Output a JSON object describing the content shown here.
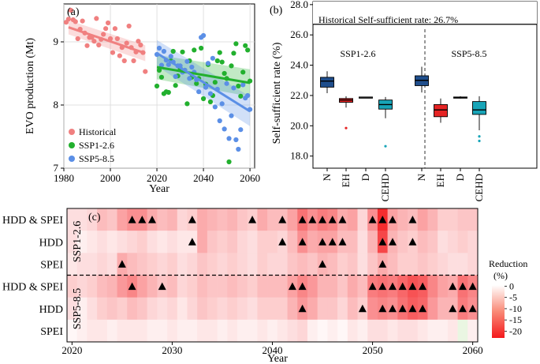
{
  "chart_data": [
    {
      "id": "a",
      "type": "scatter",
      "panel_label": "(a)",
      "xlabel": "Year",
      "ylabel": "EVO production (Mt)",
      "xlim": [
        1980,
        2062
      ],
      "ylim": [
        7,
        9.6
      ],
      "xticks": [
        1980,
        2000,
        2020,
        2040,
        2060
      ],
      "yticks": [
        7,
        8,
        9
      ],
      "legend_position": "bottom-left",
      "series": [
        {
          "name": "Historical",
          "color": "#f08080",
          "points": [
            [
              1981,
              9.31
            ],
            [
              1982,
              9.36
            ],
            [
              1983,
              9.5
            ],
            [
              1984,
              9.35
            ],
            [
              1985,
              9.32
            ],
            [
              1986,
              9.05
            ],
            [
              1987,
              9.2
            ],
            [
              1988,
              9.33
            ],
            [
              1989,
              9.14
            ],
            [
              1990,
              8.94
            ],
            [
              1991,
              9.07
            ],
            [
              1992,
              9.07
            ],
            [
              1993,
              9.01
            ],
            [
              1994,
              9.37
            ],
            [
              1995,
              8.95
            ],
            [
              1996,
              9.04
            ],
            [
              1997,
              9.12
            ],
            [
              1998,
              9.21
            ],
            [
              1999,
              9.3
            ],
            [
              2000,
              9.05
            ],
            [
              2001,
              8.83
            ],
            [
              2002,
              9.21
            ],
            [
              2003,
              9.05
            ],
            [
              2004,
              8.78
            ],
            [
              2005,
              8.91
            ],
            [
              2006,
              8.7
            ],
            [
              2007,
              8.98
            ],
            [
              2008,
              9.25
            ],
            [
              2009,
              8.91
            ],
            [
              2010,
              8.7
            ],
            [
              2011,
              8.84
            ],
            [
              2012,
              9.01
            ],
            [
              2013,
              8.95
            ],
            [
              2014,
              8.83
            ],
            [
              2015,
              8.53
            ]
          ],
          "trend": [
            [
              1982,
              9.23
            ],
            [
              2015,
              8.82
            ]
          ]
        },
        {
          "name": "SSP1-2.6",
          "color": "#22b02e",
          "points": [
            [
              2020,
              8.3
            ],
            [
              2021,
              8.55
            ],
            [
              2022,
              8.44
            ],
            [
              2023,
              8.18
            ],
            [
              2024,
              8.21
            ],
            [
              2025,
              8.2
            ],
            [
              2026,
              8.7
            ],
            [
              2027,
              8.85
            ],
            [
              2028,
              8.31
            ],
            [
              2029,
              8.46
            ],
            [
              2030,
              8.58
            ],
            [
              2031,
              8.84
            ],
            [
              2032,
              8.55
            ],
            [
              2033,
              8.02
            ],
            [
              2034,
              8.7
            ],
            [
              2035,
              8.44
            ],
            [
              2036,
              8.87
            ],
            [
              2037,
              8.34
            ],
            [
              2038,
              8.42
            ],
            [
              2039,
              8.9
            ],
            [
              2040,
              8.1
            ],
            [
              2041,
              8.33
            ],
            [
              2042,
              8.64
            ],
            [
              2043,
              8.05
            ],
            [
              2044,
              8.15
            ],
            [
              2045,
              8.36
            ],
            [
              2046,
              8.7
            ],
            [
              2047,
              8.83
            ],
            [
              2048,
              8.68
            ],
            [
              2049,
              8.5
            ],
            [
              2050,
              8.42
            ],
            [
              2051,
              7.1
            ],
            [
              2052,
              8.62
            ],
            [
              2053,
              8.82
            ],
            [
              2054,
              8.97
            ],
            [
              2055,
              8.3
            ],
            [
              2056,
              8.14
            ],
            [
              2057,
              8.52
            ],
            [
              2058,
              8.94
            ],
            [
              2059,
              8.87
            ],
            [
              2060,
              8.38
            ]
          ],
          "trend": [
            [
              2020,
              8.6
            ],
            [
              2060,
              8.35
            ]
          ]
        },
        {
          "name": "SSP5-8.5",
          "color": "#5b8fe6",
          "points": [
            [
              2020,
              8.8
            ],
            [
              2021,
              8.9
            ],
            [
              2022,
              8.63
            ],
            [
              2023,
              8.85
            ],
            [
              2024,
              8.71
            ],
            [
              2025,
              8.64
            ],
            [
              2026,
              8.77
            ],
            [
              2027,
              8.68
            ],
            [
              2028,
              8.45
            ],
            [
              2029,
              8.62
            ],
            [
              2030,
              8.62
            ],
            [
              2031,
              8.52
            ],
            [
              2032,
              8.55
            ],
            [
              2033,
              8.69
            ],
            [
              2034,
              8.42
            ],
            [
              2035,
              8.6
            ],
            [
              2036,
              8.52
            ],
            [
              2037,
              8.4
            ],
            [
              2038,
              8.21
            ],
            [
              2039,
              9.07
            ],
            [
              2040,
              9.1
            ],
            [
              2041,
              8.28
            ],
            [
              2042,
              8.66
            ],
            [
              2043,
              8.18
            ],
            [
              2044,
              8.74
            ],
            [
              2045,
              7.97
            ],
            [
              2046,
              8.25
            ],
            [
              2047,
              7.75
            ],
            [
              2048,
              8.02
            ],
            [
              2049,
              7.62
            ],
            [
              2050,
              8.34
            ],
            [
              2051,
              7.47
            ],
            [
              2052,
              7.83
            ],
            [
              2053,
              8.27
            ],
            [
              2054,
              7.45
            ],
            [
              2055,
              7.3
            ],
            [
              2056,
              7.61
            ],
            [
              2057,
              8.32
            ],
            [
              2058,
              8.11
            ],
            [
              2059,
              8.15
            ],
            [
              2060,
              7.93
            ]
          ],
          "trend": [
            [
              2020,
              8.82
            ],
            [
              2060,
              7.9
            ]
          ]
        }
      ]
    },
    {
      "id": "b",
      "type": "box",
      "panel_label": "(b)",
      "ylabel": "Self-sufficient rate (%)",
      "ylim": [
        17.2,
        28.2
      ],
      "yticks": [
        18.0,
        20.0,
        22.0,
        24.0,
        26.0,
        28.0
      ],
      "reference_line": 26.7,
      "reference_label": "Historical Self-sufficient rate: 26.7%",
      "groups": [
        {
          "name": "SSP1-2.6",
          "boxes": [
            {
              "label": "N",
              "color": "#1f4e8c",
              "whisker_low": 22.15,
              "q1": 22.55,
              "median": 22.95,
              "q3": 23.2,
              "whisker_high": 23.6,
              "outliers": []
            },
            {
              "label": "EH",
              "color": "#e52424",
              "whisker_low": 21.2,
              "q1": 21.55,
              "median": 21.7,
              "q3": 21.8,
              "whisker_high": 21.95,
              "outliers": [
                19.85
              ]
            },
            {
              "label": "D",
              "color": "#ffffff",
              "whisker_low": 21.82,
              "q1": 21.85,
              "median": 21.88,
              "q3": 21.9,
              "whisker_high": 21.92,
              "outliers": []
            },
            {
              "label": "CEHD",
              "color": "#18a5b8",
              "whisker_low": 20.5,
              "q1": 21.1,
              "median": 21.4,
              "q3": 21.7,
              "whisker_high": 21.9,
              "outliers": [
                18.65
              ]
            }
          ]
        },
        {
          "name": "SSP5-8.5",
          "boxes": [
            {
              "label": "N",
              "color": "#1f4e8c",
              "whisker_low": 22.2,
              "q1": 22.65,
              "median": 23.0,
              "q3": 23.3,
              "whisker_high": 23.9,
              "outliers": []
            },
            {
              "label": "EH",
              "color": "#e52424",
              "whisker_low": 20.2,
              "q1": 20.6,
              "median": 21.05,
              "q3": 21.4,
              "whisker_high": 21.8,
              "outliers": []
            },
            {
              "label": "D",
              "color": "#ffffff",
              "whisker_low": 21.8,
              "q1": 21.85,
              "median": 21.87,
              "q3": 21.9,
              "whisker_high": 21.95,
              "outliers": []
            },
            {
              "label": "CEHD",
              "color": "#18a5b8",
              "whisker_low": 19.7,
              "q1": 20.75,
              "median": 21.05,
              "q3": 21.6,
              "whisker_high": 21.95,
              "outliers": [
                19.3,
                19.0
              ]
            }
          ]
        }
      ]
    },
    {
      "id": "c",
      "type": "heatmap",
      "panel_label": "(c)",
      "xlabel": "Year",
      "xlim": [
        2019.5,
        2060.5
      ],
      "xticks": [
        2020,
        2030,
        2040,
        2050,
        2060
      ],
      "scenario_labels": [
        "SSP1-2.6",
        "SSP5-8.5"
      ],
      "row_labels": [
        "HDD & SPEI",
        "HDD",
        "SPEI",
        "HDD & SPEI",
        "HDD",
        "SPEI"
      ],
      "colorbar": {
        "title_line1": "Reduction",
        "title_line2": "(%)",
        "ticks": [
          0,
          -5,
          -10,
          -15,
          -20
        ],
        "min": -23,
        "max": 0.5,
        "low_color": "#f4191c",
        "high_color": "#ffffff",
        "positive_color": "#eaf6e2"
      },
      "values": [
        [
          -4,
          -4,
          -5,
          -8,
          -7,
          -11,
          -13,
          -13,
          -10,
          -8,
          -9,
          -5,
          -6,
          -10,
          -9,
          -8,
          -9,
          -7,
          -6,
          -10,
          -8,
          -8,
          -11,
          -16,
          -13,
          -15,
          -14,
          -10,
          -11,
          -5,
          -13,
          -22,
          -11,
          -9,
          -8,
          -11,
          -9,
          -6,
          -6,
          -7,
          -7
        ],
        [
          -4,
          -2,
          -3,
          -4,
          -3,
          -4,
          -5,
          -6,
          -4,
          -3,
          -4,
          -3,
          -3,
          -10,
          -7,
          -6,
          -7,
          -5,
          -4,
          -6,
          -6,
          -5,
          -8,
          -13,
          -10,
          -11,
          -11,
          -8,
          -8,
          -4,
          -9,
          -20,
          -9,
          -7,
          -6,
          -8,
          -7,
          -4,
          -5,
          -6,
          -5
        ],
        [
          -3,
          -4,
          -4,
          -5,
          -4,
          -10,
          -8,
          -7,
          -6,
          -5,
          -6,
          -4,
          -5,
          -7,
          -6,
          -5,
          -6,
          -5,
          -4,
          -6,
          -5,
          -5,
          -7,
          -8,
          -7,
          -9,
          -8,
          -6,
          -7,
          -4,
          -7,
          -10,
          -8,
          -6,
          -6,
          -7,
          -6,
          -5,
          -4,
          -4,
          -5
        ],
        [
          -6,
          -5,
          -6,
          -8,
          -9,
          -12,
          -14,
          -11,
          -9,
          -7,
          -8,
          -5,
          -6,
          -8,
          -7,
          -7,
          -8,
          -7,
          -6,
          -8,
          -8,
          -8,
          -11,
          -14,
          -12,
          -9,
          -9,
          -7,
          -10,
          -8,
          -15,
          -16,
          -15,
          -17,
          -19,
          -18,
          -14,
          -11,
          -10,
          -16,
          -14
        ],
        [
          -4,
          -2,
          -4,
          -6,
          -7,
          -6,
          -8,
          -7,
          -5,
          -4,
          -5,
          -3,
          -5,
          -7,
          -6,
          -5,
          -6,
          -5,
          -4,
          -6,
          -6,
          -6,
          -9,
          -12,
          -10,
          -7,
          -7,
          -5,
          -8,
          -6,
          -13,
          -14,
          -13,
          -16,
          -18,
          -17,
          -12,
          -9,
          -9,
          -15,
          -13
        ],
        [
          -1,
          -2,
          -3,
          -3,
          -2,
          -3,
          -3,
          -3,
          -2,
          -2,
          -3,
          -2,
          -2,
          -3,
          -3,
          -2,
          -3,
          -2,
          -2,
          -3,
          -2,
          -3,
          -4,
          -5,
          -2,
          -1,
          -2,
          -1,
          -3,
          -2,
          -4,
          -4,
          -3,
          -4,
          -4,
          -3,
          -2,
          -2,
          -3,
          1,
          -2
        ]
      ],
      "markers": [
        [
          2026,
          2027,
          2028,
          2032,
          2038,
          2041,
          2043,
          2044,
          2045,
          2046,
          2047,
          2050,
          2051,
          2052,
          2054
        ],
        [
          2032,
          2041,
          2043,
          2045,
          2046,
          2047,
          2051,
          2052,
          2054
        ],
        [
          2025,
          2045,
          2051
        ],
        [
          2026,
          2029,
          2042,
          2043,
          2050,
          2051,
          2052,
          2053,
          2054,
          2055,
          2058,
          2059,
          2060
        ],
        [
          2043,
          2049,
          2051,
          2052,
          2053,
          2054,
          2055,
          2058,
          2059,
          2060
        ],
        []
      ]
    }
  ]
}
